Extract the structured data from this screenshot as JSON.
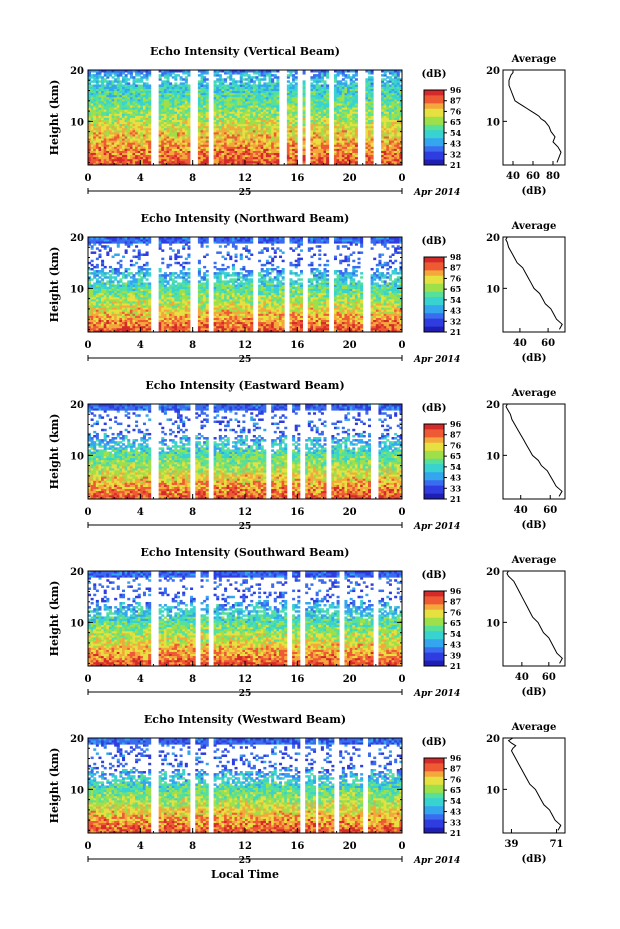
{
  "figure": {
    "date_label": "Apr 2014",
    "day_label": "25",
    "xlabel": "Local Time",
    "ylabel": "Height (km)",
    "colorbar_unit": "(dB)",
    "avg_title": "Average",
    "avg_xlabel": "(dB)"
  },
  "colors": {
    "scale": [
      "#1f1fb4",
      "#2f3ce0",
      "#3a6cf0",
      "#33a6ee",
      "#38d2d0",
      "#56e09a",
      "#9ee04a",
      "#e6e040",
      "#f4a83c",
      "#ee5a34",
      "#d42a2a"
    ]
  },
  "chart_data": [
    {
      "type": "heatmap",
      "title": "Echo Intensity (Vertical Beam)",
      "x_ticks": [
        "0",
        "4",
        "8",
        "12",
        "16",
        "20",
        "0"
      ],
      "xlim": [
        0,
        24
      ],
      "y_ticks": [
        "10",
        "20"
      ],
      "ylim": [
        1.5,
        20
      ],
      "colorbar_ticks": [
        "96",
        "87",
        "76",
        "65",
        "54",
        "43",
        "32",
        "21"
      ],
      "gaps": [
        [
          4.8,
          5.3
        ],
        [
          7.8,
          8.3
        ],
        [
          9.2,
          9.6
        ],
        [
          14.7,
          15.1
        ],
        [
          16.0,
          16.4
        ],
        [
          16.7,
          17.0
        ],
        [
          18.5,
          18.8
        ],
        [
          20.7,
          21.2
        ],
        [
          21.9,
          22.3
        ]
      ],
      "average_profile": {
        "x_ticks": [
          "40",
          "60",
          "80"
        ],
        "xlim": [
          30,
          92
        ],
        "x": [
          84,
          86,
          88,
          85,
          80,
          82,
          78,
          76,
          72,
          68,
          66,
          62,
          58,
          54,
          50,
          46,
          42,
          40,
          38,
          36,
          36,
          38,
          40,
          40
        ],
        "y": [
          2,
          3,
          4,
          5,
          6,
          7,
          8,
          9,
          10,
          10.5,
          11,
          11.5,
          12,
          12.5,
          13,
          13.5,
          14,
          15,
          16,
          17,
          18,
          19,
          19.5,
          20
        ]
      }
    },
    {
      "type": "heatmap",
      "title": "Echo Intensity (Northward Beam)",
      "x_ticks": [
        "0",
        "4",
        "8",
        "12",
        "16",
        "20",
        "0"
      ],
      "xlim": [
        0,
        24
      ],
      "y_ticks": [
        "10",
        "20"
      ],
      "ylim": [
        1.5,
        20
      ],
      "colorbar_ticks": [
        "98",
        "87",
        "76",
        "65",
        "54",
        "43",
        "32",
        "21"
      ],
      "gaps": [
        [
          4.8,
          5.3
        ],
        [
          7.8,
          8.3
        ],
        [
          9.2,
          9.6
        ],
        [
          12.6,
          12.9
        ],
        [
          15.0,
          15.3
        ],
        [
          16.4,
          16.8
        ],
        [
          18.5,
          18.8
        ],
        [
          21.1,
          21.5
        ]
      ],
      "average_profile": {
        "x_ticks": [
          "40",
          "60"
        ],
        "xlim": [
          28,
          72
        ],
        "x": [
          68,
          70,
          66,
          64,
          62,
          58,
          56,
          54,
          50,
          48,
          46,
          44,
          42,
          40,
          38,
          36,
          34,
          32,
          31,
          30,
          31,
          32
        ],
        "y": [
          2,
          3,
          4,
          5,
          6,
          7,
          8,
          9,
          10,
          11,
          12,
          13,
          14,
          14.5,
          15,
          16,
          17,
          18,
          19,
          19.5,
          20,
          20
        ]
      }
    },
    {
      "type": "heatmap",
      "title": "Echo Intensity (Eastward Beam)",
      "x_ticks": [
        "0",
        "4",
        "8",
        "12",
        "16",
        "20",
        "0"
      ],
      "xlim": [
        0,
        24
      ],
      "y_ticks": [
        "10",
        "20"
      ],
      "ylim": [
        1.5,
        20
      ],
      "colorbar_ticks": [
        "96",
        "87",
        "76",
        "65",
        "54",
        "43",
        "33",
        "21"
      ],
      "gaps": [
        [
          4.8,
          5.3
        ],
        [
          7.8,
          8.2
        ],
        [
          9.2,
          9.6
        ],
        [
          13.6,
          14.0
        ],
        [
          15.2,
          15.6
        ],
        [
          16.3,
          16.6
        ],
        [
          18.2,
          18.5
        ],
        [
          21.6,
          22.1
        ]
      ],
      "average_profile": {
        "x_ticks": [
          "40",
          "60"
        ],
        "xlim": [
          28,
          70
        ],
        "x": [
          66,
          68,
          64,
          62,
          60,
          58,
          54,
          52,
          48,
          46,
          44,
          42,
          40,
          38,
          36,
          34,
          33,
          32,
          31,
          30,
          31
        ],
        "y": [
          2,
          3,
          4,
          5,
          6,
          7,
          8,
          9,
          10,
          11,
          12,
          13,
          14,
          15,
          16,
          17,
          18,
          18.5,
          19,
          19.5,
          20
        ]
      }
    },
    {
      "type": "heatmap",
      "title": "Echo Intensity (Southward Beam)",
      "x_ticks": [
        "0",
        "4",
        "8",
        "12",
        "16",
        "20",
        "0"
      ],
      "xlim": [
        0,
        24
      ],
      "y_ticks": [
        "10",
        "20"
      ],
      "ylim": [
        1.5,
        20
      ],
      "colorbar_ticks": [
        "96",
        "87",
        "76",
        "65",
        "54",
        "43",
        "39",
        "21"
      ],
      "gaps": [
        [
          4.8,
          5.3
        ],
        [
          8.2,
          8.6
        ],
        [
          9.2,
          9.6
        ],
        [
          15.2,
          15.5
        ],
        [
          16.2,
          16.5
        ],
        [
          19.2,
          19.5
        ],
        [
          21.8,
          22.2
        ]
      ],
      "average_profile": {
        "x_ticks": [
          "40",
          "60"
        ],
        "xlim": [
          26,
          72
        ],
        "x": [
          68,
          70,
          66,
          64,
          62,
          60,
          56,
          54,
          52,
          48,
          46,
          44,
          42,
          40,
          38,
          36,
          34,
          32,
          30,
          29,
          30,
          31
        ],
        "y": [
          2,
          3,
          4,
          5,
          6,
          7,
          8,
          9,
          10,
          11,
          12,
          13,
          14,
          15,
          16,
          17,
          18,
          18.5,
          19,
          19.5,
          20,
          20
        ]
      }
    },
    {
      "type": "heatmap",
      "title": "Echo Intensity (Westward Beam)",
      "x_ticks": [
        "0",
        "4",
        "8",
        "12",
        "16",
        "20",
        "0"
      ],
      "xlim": [
        0,
        24
      ],
      "y_ticks": [
        "10",
        "20"
      ],
      "ylim": [
        1.5,
        20
      ],
      "colorbar_ticks": [
        "96",
        "87",
        "76",
        "65",
        "54",
        "43",
        "33",
        "21"
      ],
      "gaps": [
        [
          4.8,
          5.3
        ],
        [
          7.8,
          8.2
        ],
        [
          9.2,
          9.6
        ],
        [
          16.3,
          16.6
        ],
        [
          17.4,
          17.7
        ],
        [
          18.9,
          19.2
        ],
        [
          21.0,
          21.4
        ]
      ],
      "average_profile": {
        "x_ticks": [
          "39",
          "71"
        ],
        "xlim": [
          33,
          77
        ],
        "x": [
          72,
          74,
          70,
          68,
          66,
          62,
          60,
          58,
          56,
          52,
          50,
          48,
          46,
          44,
          42,
          40,
          39,
          40,
          42,
          39,
          37,
          40
        ],
        "y": [
          2,
          3,
          4,
          5,
          6,
          7,
          8,
          9,
          10,
          11,
          12,
          13,
          14,
          15,
          16,
          17,
          17.5,
          18,
          18.5,
          19,
          19.5,
          20
        ]
      }
    }
  ]
}
